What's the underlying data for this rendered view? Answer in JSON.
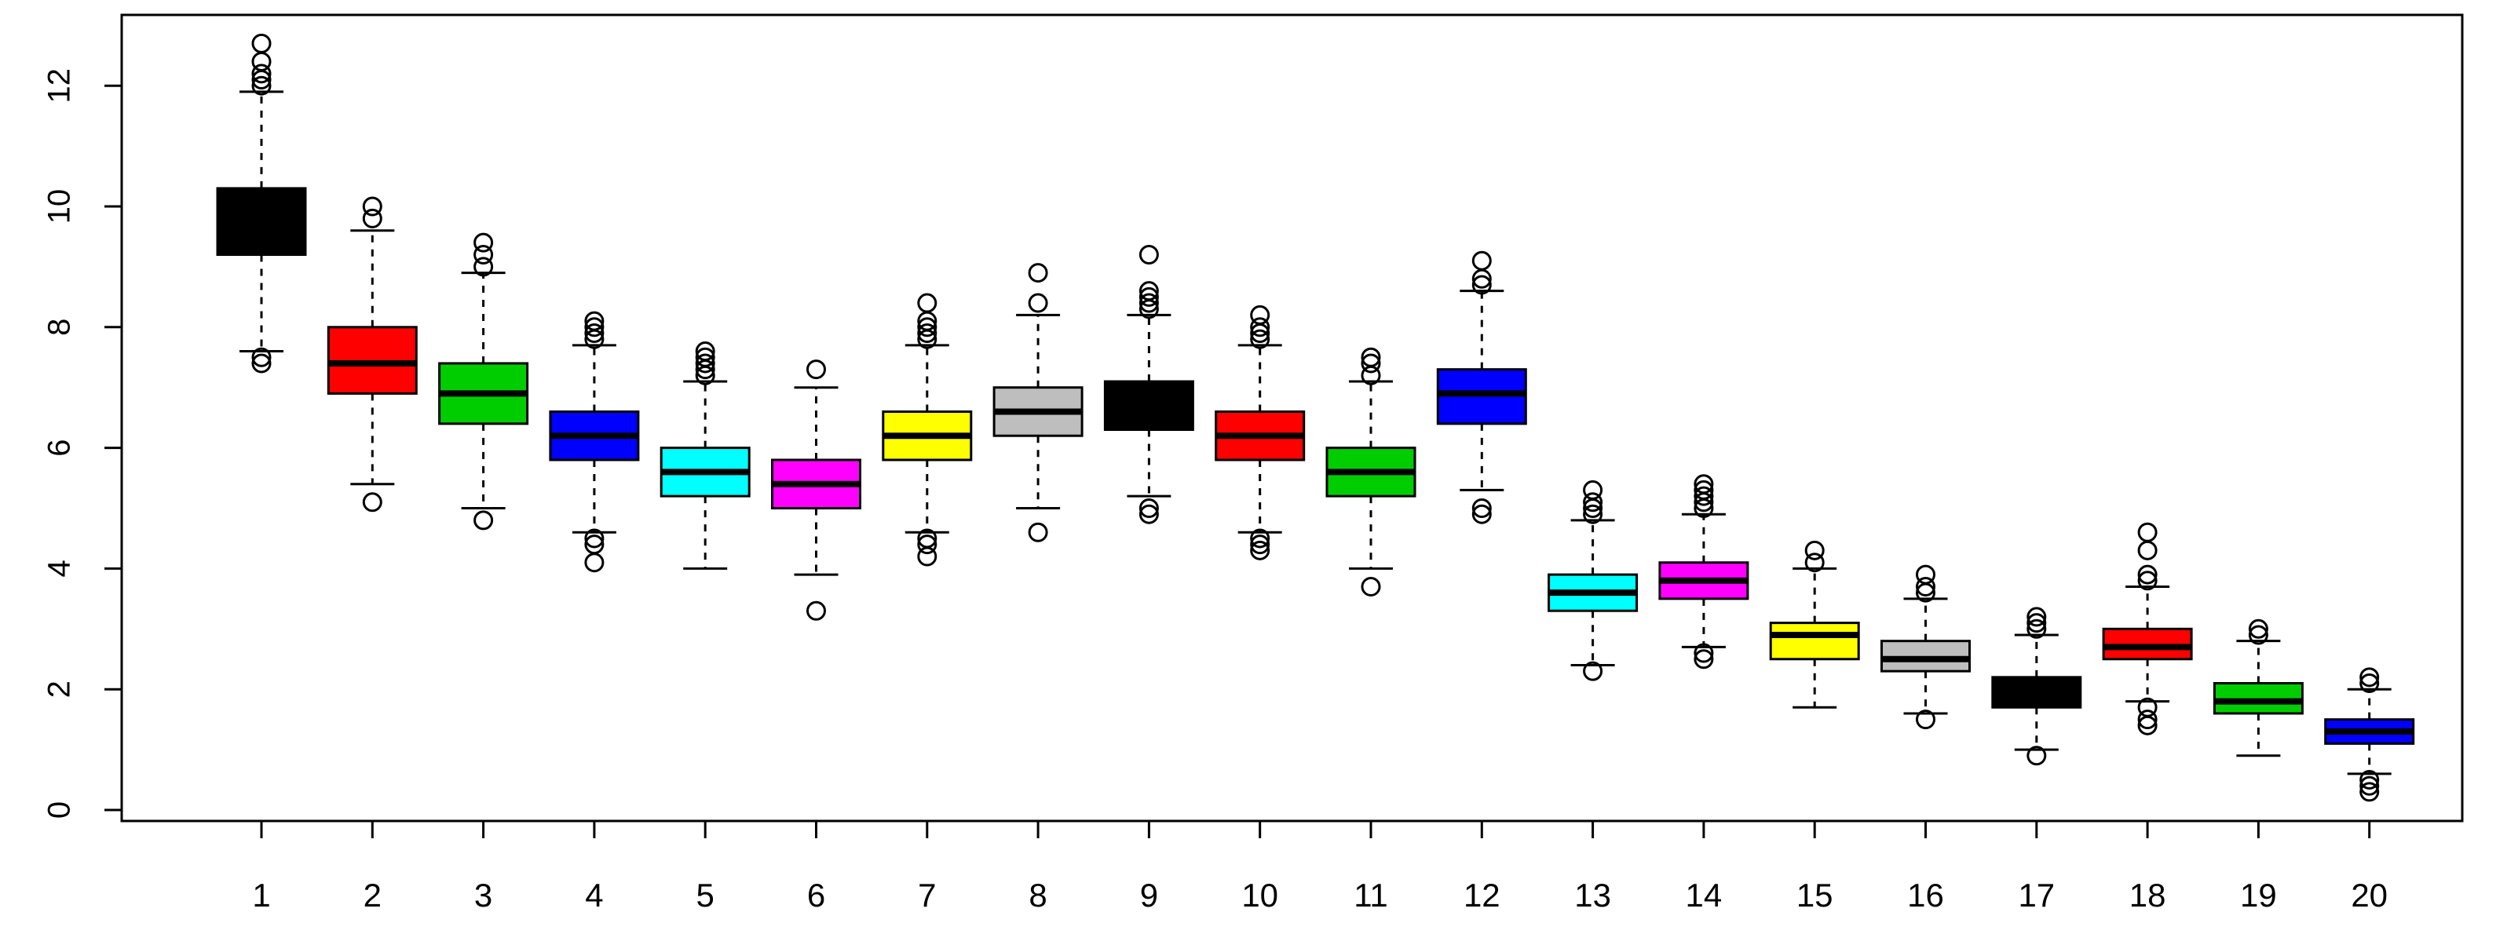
{
  "chart_data": {
    "type": "boxplot",
    "title": "",
    "xlabel": "",
    "ylabel": "",
    "ylim": [
      0,
      13
    ],
    "yticks": [
      0,
      2,
      4,
      6,
      8,
      10,
      12
    ],
    "ytick_labels": [
      "0",
      "2",
      "4",
      "6",
      "8",
      "10",
      "12"
    ],
    "grid": false,
    "categories": [
      "1",
      "2",
      "3",
      "4",
      "5",
      "6",
      "7",
      "8",
      "9",
      "10",
      "11",
      "12",
      "13",
      "14",
      "15",
      "16",
      "17",
      "18",
      "19",
      "20"
    ],
    "series": [
      {
        "category": "1",
        "color": "#000000",
        "whisker_low": 7.6,
        "q1": 9.2,
        "median": 9.7,
        "q3": 10.3,
        "whisker_high": 11.9,
        "outliers": [
          7.4,
          7.5,
          12.0,
          12.1,
          12.2,
          12.4,
          12.7
        ]
      },
      {
        "category": "2",
        "color": "#ff0000",
        "whisker_low": 5.4,
        "q1": 6.9,
        "median": 7.4,
        "q3": 8.0,
        "whisker_high": 9.6,
        "outliers": [
          5.1,
          9.8,
          10.0
        ]
      },
      {
        "category": "3",
        "color": "#00cd00",
        "whisker_low": 5.0,
        "q1": 6.4,
        "median": 6.9,
        "q3": 7.4,
        "whisker_high": 8.9,
        "outliers": [
          4.8,
          9.0,
          9.2,
          9.4
        ]
      },
      {
        "category": "4",
        "color": "#0000ff",
        "whisker_low": 4.6,
        "q1": 5.8,
        "median": 6.2,
        "q3": 6.6,
        "whisker_high": 7.7,
        "outliers": [
          4.1,
          4.4,
          4.5,
          7.8,
          7.9,
          8.0,
          8.1
        ]
      },
      {
        "category": "5",
        "color": "#00ffff",
        "whisker_low": 4.0,
        "q1": 5.2,
        "median": 5.6,
        "q3": 6.0,
        "whisker_high": 7.1,
        "outliers": [
          7.2,
          7.3,
          7.4,
          7.5,
          7.6
        ]
      },
      {
        "category": "6",
        "color": "#ff00ff",
        "whisker_low": 3.9,
        "q1": 5.0,
        "median": 5.4,
        "q3": 5.8,
        "whisker_high": 7.0,
        "outliers": [
          3.3,
          7.3
        ]
      },
      {
        "category": "7",
        "color": "#ffff00",
        "whisker_low": 4.6,
        "q1": 5.8,
        "median": 6.2,
        "q3": 6.6,
        "whisker_high": 7.7,
        "outliers": [
          4.2,
          4.4,
          4.5,
          7.8,
          7.9,
          8.0,
          8.1,
          8.4
        ]
      },
      {
        "category": "8",
        "color": "#bebebe",
        "whisker_low": 5.0,
        "q1": 6.2,
        "median": 6.6,
        "q3": 7.0,
        "whisker_high": 8.2,
        "outliers": [
          4.6,
          8.4,
          8.9
        ]
      },
      {
        "category": "9",
        "color": "#000000",
        "whisker_low": 5.2,
        "q1": 6.3,
        "median": 6.7,
        "q3": 7.1,
        "whisker_high": 8.2,
        "outliers": [
          4.9,
          5.0,
          8.3,
          8.4,
          8.5,
          8.6,
          9.2
        ]
      },
      {
        "category": "10",
        "color": "#ff0000",
        "whisker_low": 4.6,
        "q1": 5.8,
        "median": 6.2,
        "q3": 6.6,
        "whisker_high": 7.7,
        "outliers": [
          4.3,
          4.4,
          4.5,
          7.8,
          7.9,
          8.0,
          8.2
        ]
      },
      {
        "category": "11",
        "color": "#00cd00",
        "whisker_low": 4.0,
        "q1": 5.2,
        "median": 5.6,
        "q3": 6.0,
        "whisker_high": 7.1,
        "outliers": [
          3.7,
          7.2,
          7.4,
          7.5
        ]
      },
      {
        "category": "12",
        "color": "#0000ff",
        "whisker_low": 5.3,
        "q1": 6.4,
        "median": 6.9,
        "q3": 7.3,
        "whisker_high": 8.6,
        "outliers": [
          4.9,
          5.0,
          8.7,
          8.8,
          9.1
        ]
      },
      {
        "category": "13",
        "color": "#00ffff",
        "whisker_low": 2.4,
        "q1": 3.3,
        "median": 3.6,
        "q3": 3.9,
        "whisker_high": 4.8,
        "outliers": [
          2.3,
          4.9,
          5.0,
          5.1,
          5.3
        ]
      },
      {
        "category": "14",
        "color": "#ff00ff",
        "whisker_low": 2.7,
        "q1": 3.5,
        "median": 3.8,
        "q3": 4.1,
        "whisker_high": 4.9,
        "outliers": [
          2.5,
          2.6,
          5.0,
          5.1,
          5.2,
          5.3,
          5.4
        ]
      },
      {
        "category": "15",
        "color": "#ffff00",
        "whisker_low": 1.7,
        "q1": 2.5,
        "median": 2.9,
        "q3": 3.1,
        "whisker_high": 4.0,
        "outliers": [
          4.1,
          4.3
        ]
      },
      {
        "category": "16",
        "color": "#bebebe",
        "whisker_low": 1.6,
        "q1": 2.3,
        "median": 2.5,
        "q3": 2.8,
        "whisker_high": 3.5,
        "outliers": [
          1.5,
          3.6,
          3.7,
          3.9
        ]
      },
      {
        "category": "17",
        "color": "#000000",
        "whisker_low": 1.0,
        "q1": 1.7,
        "median": 1.9,
        "q3": 2.2,
        "whisker_high": 2.9,
        "outliers": [
          0.9,
          3.0,
          3.1,
          3.2
        ]
      },
      {
        "category": "18",
        "color": "#ff0000",
        "whisker_low": 1.8,
        "q1": 2.5,
        "median": 2.7,
        "q3": 3.0,
        "whisker_high": 3.7,
        "outliers": [
          1.4,
          1.5,
          1.7,
          3.8,
          3.9,
          4.3,
          4.6
        ]
      },
      {
        "category": "19",
        "color": "#00cd00",
        "whisker_low": 0.9,
        "q1": 1.6,
        "median": 1.8,
        "q3": 2.1,
        "whisker_high": 2.8,
        "outliers": [
          2.9,
          3.0
        ]
      },
      {
        "category": "20",
        "color": "#0000ff",
        "whisker_low": 0.6,
        "q1": 1.1,
        "median": 1.3,
        "q3": 1.5,
        "whisker_high": 2.0,
        "outliers": [
          0.3,
          0.4,
          0.5,
          2.1,
          2.2
        ]
      }
    ]
  }
}
